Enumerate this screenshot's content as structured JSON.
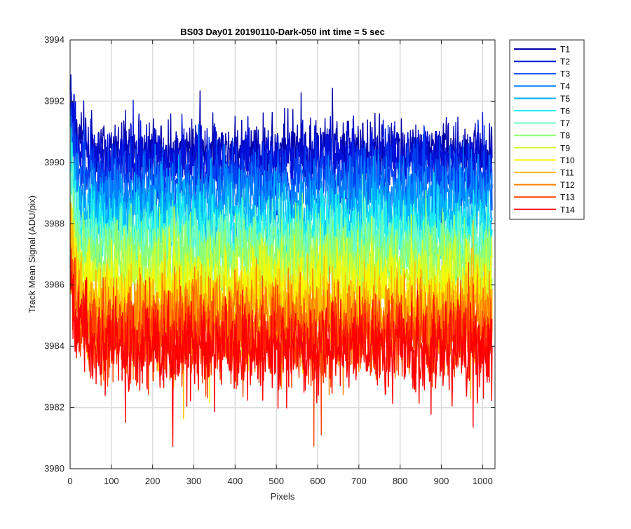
{
  "chart_data": {
    "type": "line",
    "title": "BS03 Day01 20190110-Dark-050 int time = 5 sec",
    "xlabel": "Pixels",
    "ylabel": "Track Mean Signal (ADU/pix)",
    "xlim": [
      0,
      1030
    ],
    "ylim": [
      3980,
      3994
    ],
    "xticks": [
      0,
      100,
      200,
      300,
      400,
      500,
      600,
      700,
      800,
      900,
      1000
    ],
    "yticks": [
      3980,
      3982,
      3984,
      3986,
      3988,
      3990,
      3992,
      3994
    ],
    "grid": true,
    "legend_position": "outside-right",
    "n_pixels": 1024,
    "noise_note": "Each series is dense pixel-to-pixel noise around its mean level; values listed are approximate means with typical amplitude.",
    "series": [
      {
        "name": "T1",
        "color": "#0000aa",
        "mean": 3990.4,
        "amplitude": 0.75,
        "start": 3992.5
      },
      {
        "name": "T2",
        "color": "#0010d8",
        "mean": 3990.1,
        "amplitude": 0.75,
        "start": 3992.0
      },
      {
        "name": "T3",
        "color": "#0040f0",
        "mean": 3989.5,
        "amplitude": 0.75,
        "start": 3991.6
      },
      {
        "name": "T4",
        "color": "#0080ff",
        "mean": 3988.9,
        "amplitude": 0.8,
        "start": 3991.0
      },
      {
        "name": "T5",
        "color": "#00b4ff",
        "mean": 3988.3,
        "amplitude": 0.8,
        "start": 3990.5
      },
      {
        "name": "T6",
        "color": "#20f0f0",
        "mean": 3987.8,
        "amplitude": 0.85,
        "start": 3990.0
      },
      {
        "name": "T7",
        "color": "#70ffc0",
        "mean": 3987.3,
        "amplitude": 0.85,
        "start": 3989.5
      },
      {
        "name": "T8",
        "color": "#90ff70",
        "mean": 3986.8,
        "amplitude": 0.9,
        "start": 3989.0
      },
      {
        "name": "T9",
        "color": "#d0ff30",
        "mean": 3986.2,
        "amplitude": 0.9,
        "start": 3988.6
      },
      {
        "name": "T10",
        "color": "#f8f800",
        "mean": 3985.7,
        "amplitude": 0.95,
        "start": 3988.2
      },
      {
        "name": "T11",
        "color": "#ffc000",
        "mean": 3985.2,
        "amplitude": 0.95,
        "start": 3987.8
      },
      {
        "name": "T12",
        "color": "#ff8000",
        "mean": 3984.8,
        "amplitude": 1.0,
        "start": 3987.4
      },
      {
        "name": "T13",
        "color": "#ff4000",
        "mean": 3984.3,
        "amplitude": 1.0,
        "start": 3987.0
      },
      {
        "name": "T14",
        "color": "#ff0000",
        "mean": 3984.0,
        "amplitude": 1.05,
        "start": 3986.6
      }
    ]
  }
}
